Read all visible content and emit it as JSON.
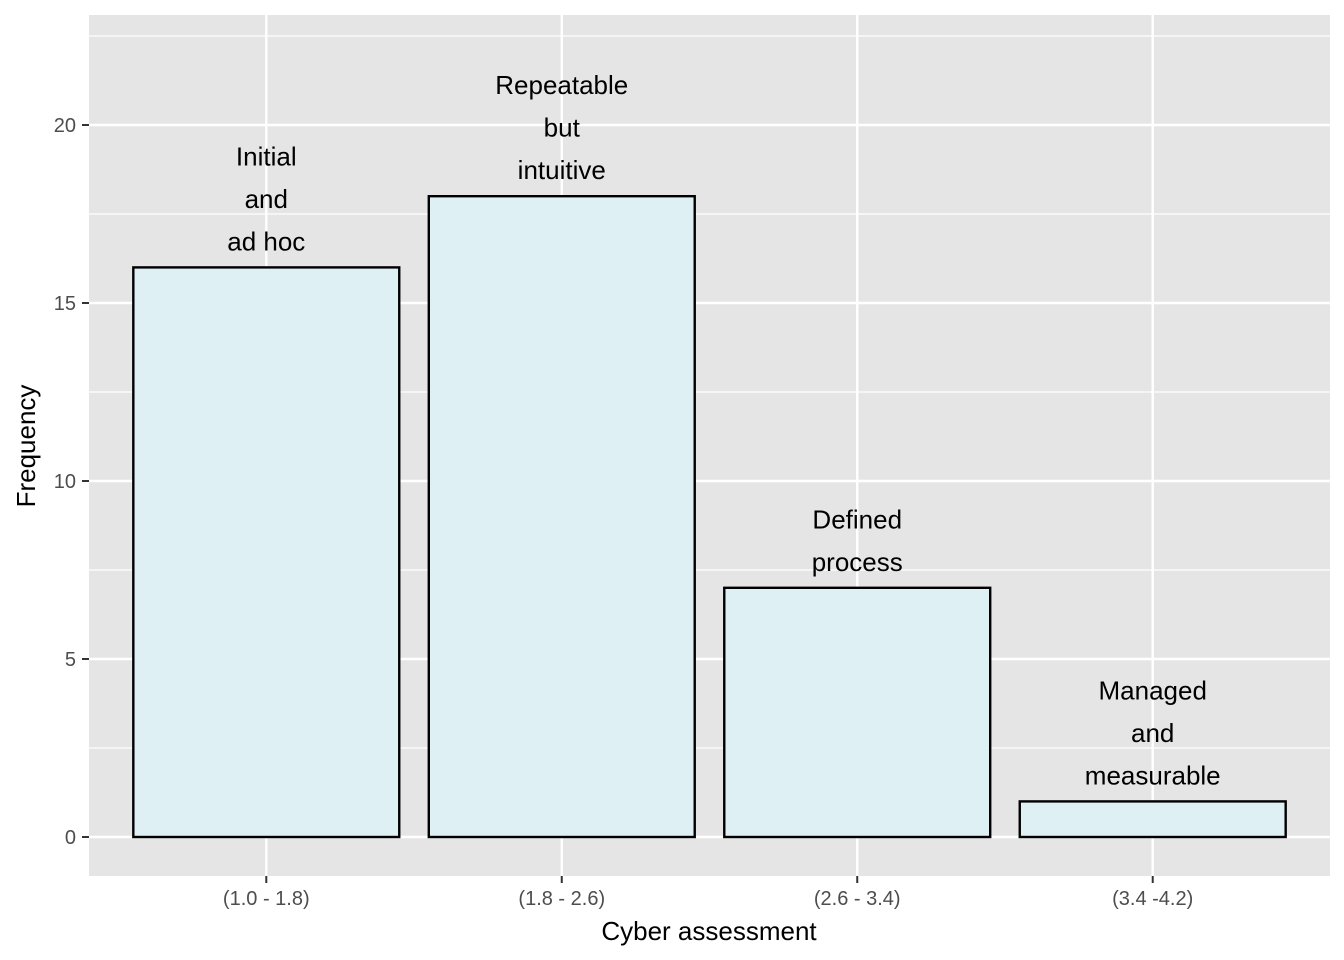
{
  "chart_data": {
    "type": "bar",
    "categories": [
      "(1.0 - 1.8)",
      "(1.8 - 2.6)",
      "(2.6 - 3.4)",
      "(3.4 -4.2)"
    ],
    "values": [
      16,
      18,
      7,
      1
    ],
    "bar_labels": [
      [
        "Initial",
        "and",
        "ad hoc"
      ],
      [
        "Repeatable",
        "but",
        "intuitive"
      ],
      [
        "Defined",
        "process"
      ],
      [
        "Managed",
        "and",
        "measurable"
      ]
    ],
    "xlabel": "Cyber assessment",
    "ylabel": "Frequency",
    "ylim": [
      -1,
      23.2
    ],
    "yticks": [
      0,
      5,
      10,
      15,
      20
    ],
    "grid": true,
    "colors": {
      "panel_background": "#e5e5e5",
      "grid": "#ffffff",
      "bar_fill": "#dff0f5",
      "bar_stroke": "#000000"
    }
  }
}
